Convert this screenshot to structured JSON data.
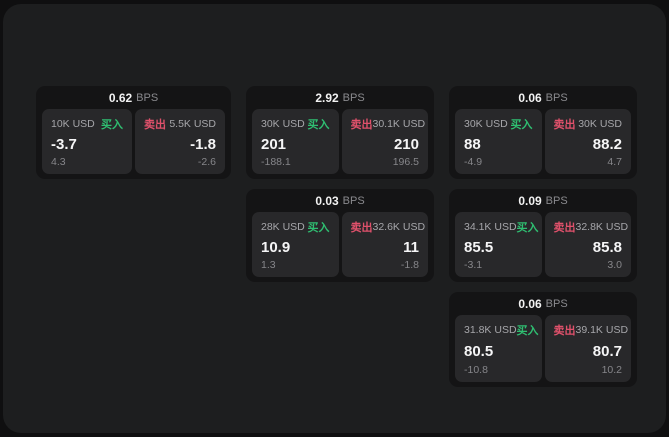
{
  "colors": {
    "buy": "#2fbe71",
    "sell": "#e0516b"
  },
  "labels": {
    "bps": "BPS",
    "buy": "买入",
    "sell": "卖出"
  },
  "cards": [
    {
      "bps": "0.62",
      "buy": {
        "amount": "10K USD",
        "price": "-3.7",
        "delta": "4.3"
      },
      "sell": {
        "amount": "5.5K USD",
        "price": "-1.8",
        "delta": "-2.6"
      }
    },
    {
      "bps": "2.92",
      "buy": {
        "amount": "30K USD",
        "price": "201",
        "delta": "-188.1"
      },
      "sell": {
        "amount": "30.1K USD",
        "price": "210",
        "delta": "196.5"
      }
    },
    {
      "bps": "0.06",
      "buy": {
        "amount": "30K USD",
        "price": "88",
        "delta": "-4.9"
      },
      "sell": {
        "amount": "30K USD",
        "price": "88.2",
        "delta": "4.7"
      }
    },
    {
      "bps": "0.03",
      "buy": {
        "amount": "28K USD",
        "price": "10.9",
        "delta": "1.3"
      },
      "sell": {
        "amount": "32.6K USD",
        "price": "11",
        "delta": "-1.8"
      }
    },
    {
      "bps": "0.09",
      "buy": {
        "amount": "34.1K USD",
        "price": "85.5",
        "delta": "-3.1"
      },
      "sell": {
        "amount": "32.8K USD",
        "price": "85.8",
        "delta": "3.0"
      }
    },
    {
      "bps": "0.06",
      "buy": {
        "amount": "31.8K USD",
        "price": "80.5",
        "delta": "-10.8"
      },
      "sell": {
        "amount": "39.1K USD",
        "price": "80.7",
        "delta": "10.2"
      }
    }
  ]
}
